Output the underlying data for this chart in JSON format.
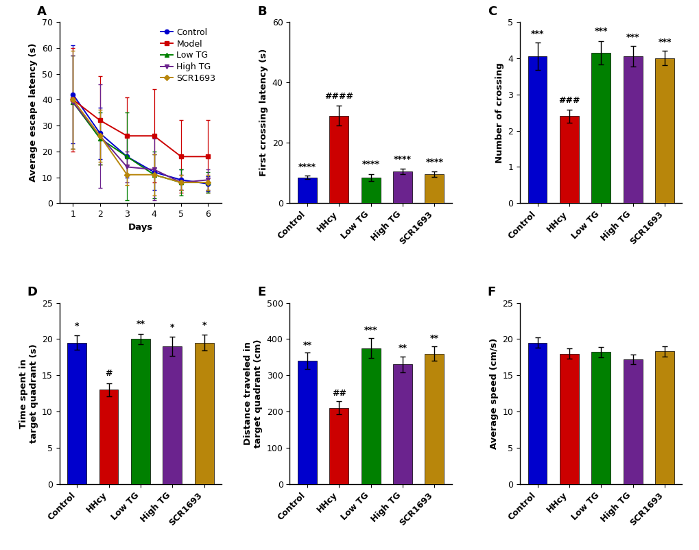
{
  "panel_A": {
    "title": "A",
    "xlabel": "Days",
    "ylabel": "Average escape latency (s)",
    "ylim": [
      0,
      70
    ],
    "yticks": [
      0,
      10,
      20,
      30,
      40,
      50,
      60,
      70
    ],
    "days": [
      1,
      2,
      3,
      4,
      5,
      6
    ],
    "series": {
      "Control": {
        "means": [
          42,
          27,
          18,
          12,
          9,
          7.5
        ],
        "sems": [
          19,
          10,
          8,
          7,
          4,
          3
        ],
        "color": "#0000CD",
        "marker": "o",
        "linestyle": "-"
      },
      "Model": {
        "means": [
          40,
          32,
          26,
          26,
          18,
          18
        ],
        "sems": [
          20,
          17,
          15,
          18,
          14,
          14
        ],
        "color": "#CC0000",
        "marker": "s",
        "linestyle": "-"
      },
      "Low TG": {
        "means": [
          39,
          25,
          18,
          11,
          8,
          8
        ],
        "sems": [
          18,
          10,
          17,
          9,
          5,
          4
        ],
        "color": "#008000",
        "marker": "^",
        "linestyle": "-"
      },
      "High TG": {
        "means": [
          39,
          26,
          14,
          13,
          8,
          9
        ],
        "sems": [
          18,
          20,
          6,
          12,
          3,
          4
        ],
        "color": "#6B238E",
        "marker": "v",
        "linestyle": "-"
      },
      "SCR1693": {
        "means": [
          40,
          26,
          11,
          11,
          8,
          8
        ],
        "sems": [
          19,
          10,
          4,
          8,
          3,
          3
        ],
        "color": "#B8860B",
        "marker": "D",
        "linestyle": "-"
      }
    }
  },
  "panel_B": {
    "title": "B",
    "ylabel": "First crossing latency (s)",
    "ylim": [
      0,
      60
    ],
    "yticks": [
      0,
      20,
      40,
      60
    ],
    "categories": [
      "Control",
      "HHcy",
      "Low TG",
      "High TG",
      "SCR1693"
    ],
    "means": [
      8.5,
      29,
      8.5,
      10.5,
      9.5
    ],
    "sems": [
      0.6,
      3.2,
      1.2,
      1.0,
      0.9
    ],
    "colors": [
      "#0000CD",
      "#CC0000",
      "#008000",
      "#6B238E",
      "#B8860B"
    ],
    "sig_stars": [
      "****",
      "####",
      "****",
      "****",
      "****"
    ],
    "sig_y": [
      10.5,
      34.0,
      11.5,
      13.0,
      12.0
    ],
    "sig_is_hash": [
      false,
      true,
      false,
      false,
      false
    ]
  },
  "panel_C": {
    "title": "C",
    "ylabel": "Number of crossing",
    "ylim": [
      0,
      5
    ],
    "yticks": [
      0,
      1,
      2,
      3,
      4,
      5
    ],
    "categories": [
      "Control",
      "HHcy",
      "Low TG",
      "High TG",
      "SCR1693"
    ],
    "means": [
      4.05,
      2.4,
      4.15,
      4.05,
      4.0
    ],
    "sems": [
      0.38,
      0.18,
      0.32,
      0.28,
      0.2
    ],
    "colors": [
      "#0000CD",
      "#CC0000",
      "#008000",
      "#6B238E",
      "#B8860B"
    ],
    "sig_stars": [
      "***",
      "###",
      "***",
      "***",
      "***"
    ],
    "sig_y": [
      4.55,
      2.72,
      4.62,
      4.45,
      4.32
    ],
    "sig_is_hash": [
      false,
      true,
      false,
      false,
      false
    ]
  },
  "panel_D": {
    "title": "D",
    "ylabel": "Time spent in\ntarget quadrant (s)",
    "ylim": [
      0,
      25
    ],
    "yticks": [
      0,
      5,
      10,
      15,
      20,
      25
    ],
    "categories": [
      "Control",
      "HHcy",
      "Low TG",
      "High TG",
      "SCR1693"
    ],
    "means": [
      19.5,
      13.0,
      20.0,
      19.0,
      19.5
    ],
    "sems": [
      1.0,
      0.9,
      0.7,
      1.3,
      1.1
    ],
    "colors": [
      "#0000CD",
      "#CC0000",
      "#008000",
      "#6B238E",
      "#B8860B"
    ],
    "sig_stars": [
      "*",
      "#",
      "**",
      "*",
      "*"
    ],
    "sig_y": [
      21.2,
      14.6,
      21.5,
      21.0,
      21.3
    ],
    "sig_is_hash": [
      false,
      true,
      false,
      false,
      false
    ]
  },
  "panel_E": {
    "title": "E",
    "ylabel": "Distance traveled in\ntarget quadrant (cm)",
    "ylim": [
      0,
      500
    ],
    "yticks": [
      0,
      100,
      200,
      300,
      400,
      500
    ],
    "categories": [
      "Control",
      "HHcy",
      "Low TG",
      "High TG",
      "SCR1693"
    ],
    "means": [
      340,
      210,
      375,
      330,
      360
    ],
    "sems": [
      22,
      18,
      27,
      22,
      20
    ],
    "colors": [
      "#0000CD",
      "#CC0000",
      "#008000",
      "#6B238E",
      "#B8860B"
    ],
    "sig_stars": [
      "**",
      "##",
      "***",
      "**",
      "**"
    ],
    "sig_y": [
      370,
      238,
      412,
      362,
      390
    ],
    "sig_is_hash": [
      false,
      true,
      false,
      false,
      false
    ]
  },
  "panel_F": {
    "title": "F",
    "ylabel": "Average speed (cm/s)",
    "ylim": [
      0,
      25
    ],
    "yticks": [
      0,
      5,
      10,
      15,
      20,
      25
    ],
    "categories": [
      "Control",
      "HHcy",
      "Low TG",
      "High TG",
      "SCR1693"
    ],
    "means": [
      19.5,
      18.0,
      18.2,
      17.2,
      18.3
    ],
    "sems": [
      0.7,
      0.7,
      0.7,
      0.7,
      0.7
    ],
    "colors": [
      "#0000CD",
      "#CC0000",
      "#008000",
      "#6B238E",
      "#B8860B"
    ],
    "sig_stars": [
      "",
      "",
      "",
      "",
      ""
    ],
    "sig_y": [
      20.5,
      19.0,
      19.2,
      18.2,
      19.3
    ],
    "sig_is_hash": [
      false,
      false,
      false,
      false,
      false
    ]
  },
  "bar_width": 0.6,
  "fontsize_label": 9.5,
  "fontsize_tick": 9,
  "fontsize_panel": 13,
  "fontsize_sig": 9,
  "legend_fontsize": 9
}
